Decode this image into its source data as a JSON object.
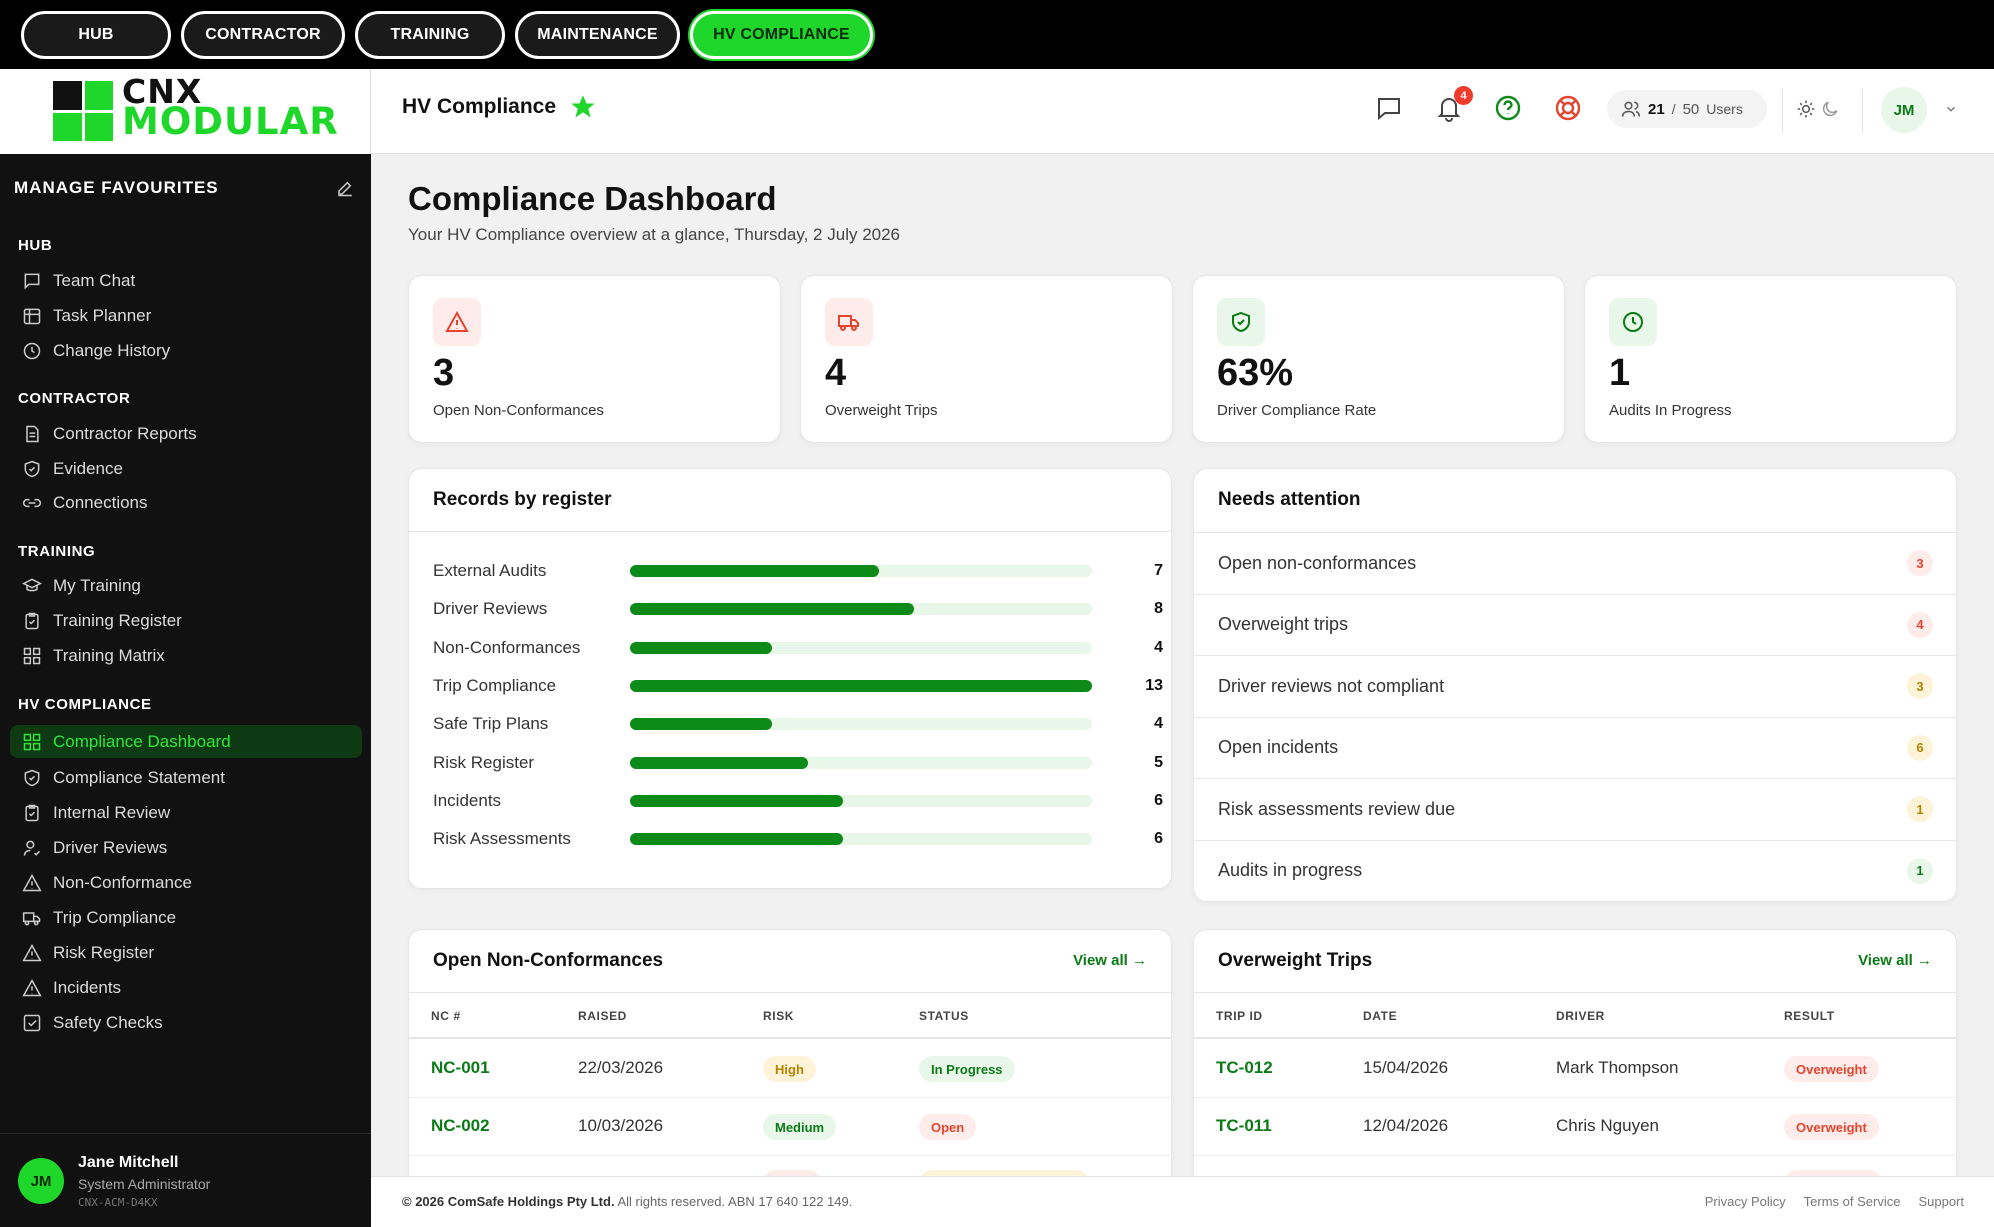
{
  "topnav": {
    "tabs": [
      {
        "label": "HUB"
      },
      {
        "label": "CONTRACTOR"
      },
      {
        "label": "TRAINING"
      },
      {
        "label": "MAINTENANCE"
      },
      {
        "label": "HV COMPLIANCE"
      }
    ],
    "active": "HV COMPLIANCE"
  },
  "brand": {
    "line1": "CNX",
    "line2": "MODULAR",
    "accent": "#1ed72a"
  },
  "sidebar": {
    "favourites_title": "MANAGE FAVOURITES",
    "sections": [
      {
        "title": "HUB",
        "items": [
          {
            "label": "Team Chat",
            "icon": "chat-icon"
          },
          {
            "label": "Task Planner",
            "icon": "calendar-icon"
          },
          {
            "label": "Change History",
            "icon": "history-icon"
          }
        ]
      },
      {
        "title": "CONTRACTOR",
        "items": [
          {
            "label": "Contractor Reports",
            "icon": "document-icon"
          },
          {
            "label": "Evidence",
            "icon": "shield-icon"
          },
          {
            "label": "Connections",
            "icon": "link-icon"
          }
        ]
      },
      {
        "title": "TRAINING",
        "items": [
          {
            "label": "My Training",
            "icon": "graduation-cap-icon"
          },
          {
            "label": "Training Register",
            "icon": "clipboard-icon"
          },
          {
            "label": "Training Matrix",
            "icon": "grid-icon"
          }
        ]
      },
      {
        "title": "HV COMPLIANCE",
        "items": [
          {
            "label": "Compliance Dashboard",
            "icon": "dashboard-icon",
            "active": true
          },
          {
            "label": "Compliance Statement",
            "icon": "shield-icon"
          },
          {
            "label": "Internal Review",
            "icon": "clipboard-icon"
          },
          {
            "label": "Driver Reviews",
            "icon": "user-check-icon"
          },
          {
            "label": "Non-Conformance",
            "icon": "warning-icon"
          },
          {
            "label": "Trip Compliance",
            "icon": "truck-icon"
          },
          {
            "label": "Risk Register",
            "icon": "warning-icon"
          },
          {
            "label": "Incidents",
            "icon": "warning-icon"
          },
          {
            "label": "Safety Checks",
            "icon": "checkbox-icon"
          }
        ]
      }
    ],
    "user": {
      "initials": "JM",
      "name": "Jane Mitchell",
      "role": "System Administrator",
      "code": "CNX-ACM-D4KX"
    }
  },
  "header": {
    "title": "HV Compliance",
    "notifications": "4",
    "users_current": "21",
    "users_sep": "/",
    "users_max": "50",
    "users_label": "Users",
    "avatar": "JM"
  },
  "dashboard": {
    "title": "Compliance Dashboard",
    "subtitle": "Your HV Compliance overview at a glance, Thursday, 2 July 2026",
    "kpis": [
      {
        "value": "3",
        "label": "Open Non-Conformances",
        "icon": "warning-icon",
        "tone": "#fdecea",
        "color": "#e5452f"
      },
      {
        "value": "4",
        "label": "Overweight Trips",
        "icon": "truck-icon",
        "tone": "#fdecea",
        "color": "#e5452f"
      },
      {
        "value": "63%",
        "label": "Driver Compliance Rate",
        "icon": "shield-check-icon",
        "tone": "#e9f7ea",
        "color": "#0c7a16"
      },
      {
        "value": "1",
        "label": "Audits In Progress",
        "icon": "clock-icon",
        "tone": "#e9f7ea",
        "color": "#0c7a16"
      }
    ]
  },
  "records": {
    "title": "Records by register",
    "max": 13,
    "rows": [
      {
        "label": "External Audits",
        "value": 7
      },
      {
        "label": "Driver Reviews",
        "value": 8
      },
      {
        "label": "Non-Conformances",
        "value": 4
      },
      {
        "label": "Trip Compliance",
        "value": 13
      },
      {
        "label": "Safe Trip Plans",
        "value": 4
      },
      {
        "label": "Risk Register",
        "value": 5
      },
      {
        "label": "Incidents",
        "value": 6
      },
      {
        "label": "Risk Assessments",
        "value": 6
      }
    ]
  },
  "attention": {
    "title": "Needs attention",
    "rows": [
      {
        "label": "Open non-conformances",
        "count": "3",
        "bg": "#fdecea",
        "fg": "#e5452f"
      },
      {
        "label": "Overweight trips",
        "count": "4",
        "bg": "#fdecea",
        "fg": "#e5452f"
      },
      {
        "label": "Driver reviews not compliant",
        "count": "3",
        "bg": "#fdf3d8",
        "fg": "#b88200"
      },
      {
        "label": "Open incidents",
        "count": "6",
        "bg": "#fdf3d8",
        "fg": "#b88200"
      },
      {
        "label": "Risk assessments review due",
        "count": "1",
        "bg": "#fdf3d8",
        "fg": "#b88200"
      },
      {
        "label": "Audits in progress",
        "count": "1",
        "bg": "#e9f7ea",
        "fg": "#0c7a16"
      }
    ]
  },
  "nc_table": {
    "title": "Open Non-Conformances",
    "view_all": "View all →",
    "headers": [
      "NC #",
      "RAISED",
      "RISK",
      "STATUS"
    ],
    "rows": [
      {
        "id": "NC-001",
        "raised": "22/03/2026",
        "risk": "High",
        "status": "In Progress"
      },
      {
        "id": "NC-002",
        "raised": "10/03/2026",
        "risk": "Medium",
        "status": "Open"
      }
    ]
  },
  "ow_table": {
    "title": "Overweight Trips",
    "view_all": "View all →",
    "headers": [
      "TRIP ID",
      "DATE",
      "DRIVER",
      "RESULT"
    ],
    "rows": [
      {
        "id": "TC-012",
        "date": "15/04/2026",
        "driver": "Mark Thompson",
        "result": "Overweight"
      },
      {
        "id": "TC-011",
        "date": "12/04/2026",
        "driver": "Chris Nguyen",
        "result": "Overweight"
      }
    ]
  },
  "footer": {
    "company": "© 2026 ComSafe Holdings Pty Ltd.",
    "rights": " All rights reserved. ABN 17 640 122 149.",
    "links": [
      "Privacy Policy",
      "Terms of Service",
      "Support"
    ]
  }
}
